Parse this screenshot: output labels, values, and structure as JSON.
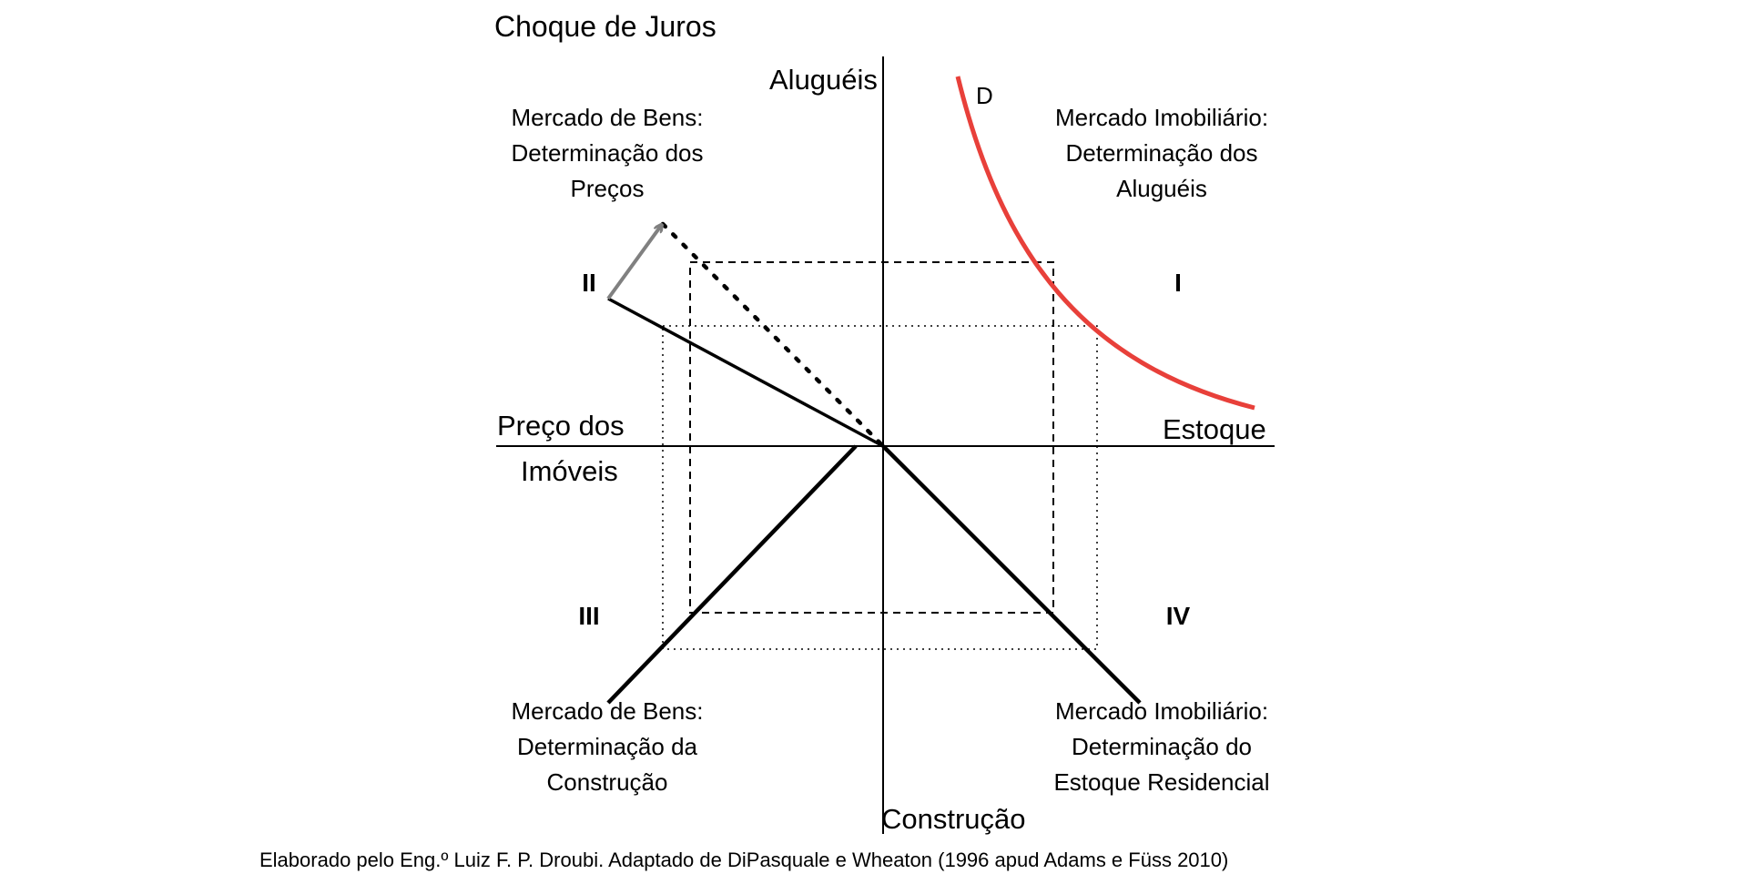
{
  "title": "Choque de Juros",
  "axes": {
    "top": "Aluguéis",
    "right": "Estoque",
    "left_line1": "Preço dos",
    "left_line2": "Imóveis",
    "bottom": "Construção"
  },
  "quadrants": {
    "I": {
      "numeral": "I",
      "lines": [
        "Mercado Imobiliário:",
        "Determinação dos",
        "Aluguéis"
      ]
    },
    "II": {
      "numeral": "II",
      "lines": [
        "Mercado de Bens:",
        "Determinação dos",
        "Preços"
      ]
    },
    "III": {
      "numeral": "III",
      "lines": [
        "Mercado de Bens:",
        "Determinação da",
        "Construção"
      ]
    },
    "IV": {
      "numeral": "IV",
      "lines": [
        "Mercado Imobiliário:",
        "Determinação do",
        "Estoque Residencial"
      ]
    }
  },
  "demand_curve": {
    "label": "D",
    "color": "#e8403a"
  },
  "colors": {
    "lines": "#000000",
    "shift_arrow": "#808080"
  },
  "credit": "Elaborado pelo Eng.º Luiz F. P. Droubi. Adaptado de DiPasquale e Wheaton (1996 apud Adams e Füss 2010)"
}
